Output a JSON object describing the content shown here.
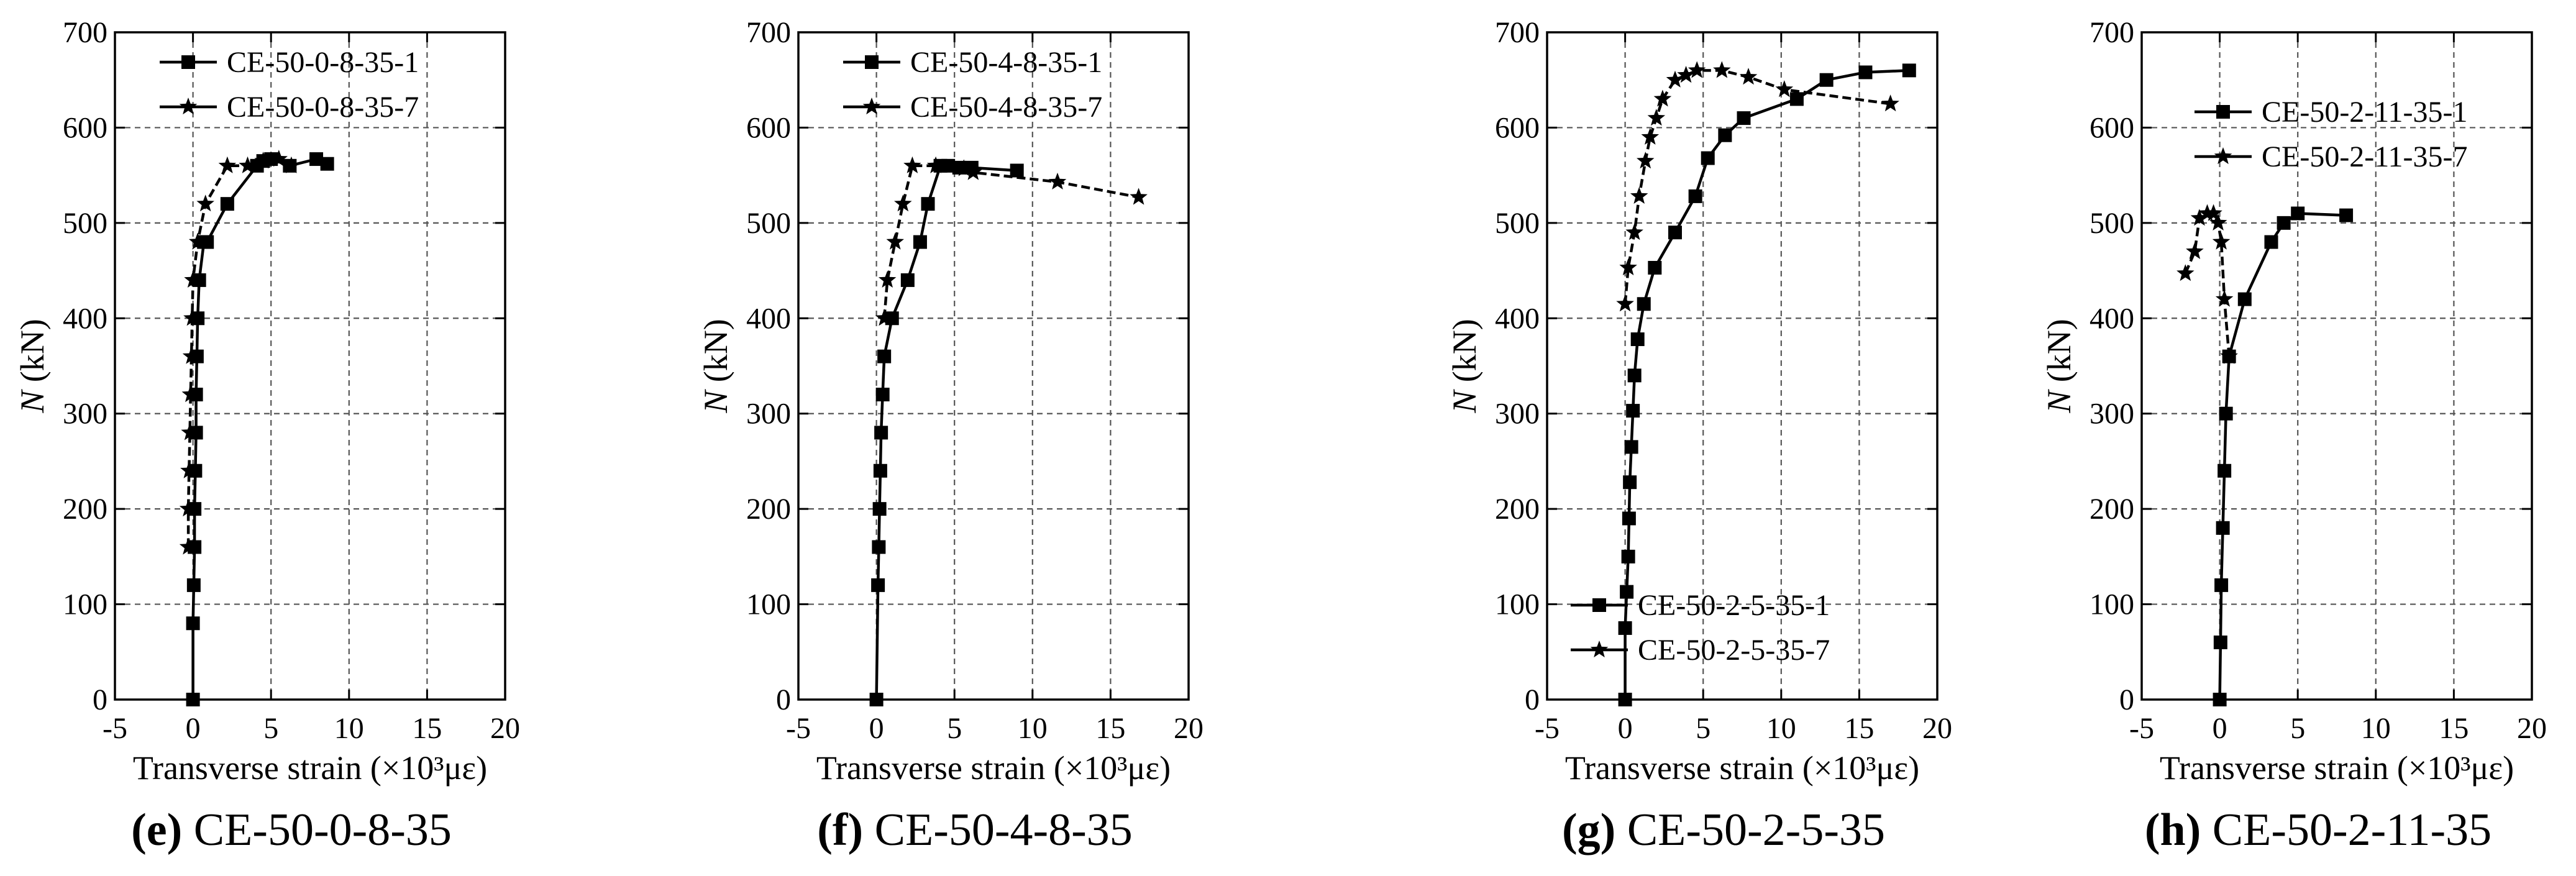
{
  "colors": {
    "line": "#000000",
    "grid": "#555555",
    "background": "#ffffff"
  },
  "chart_data": [
    {
      "type": "line",
      "panel_letter": "(e)",
      "panel_title": "CE-50-0-8-35",
      "xlabel": "Transverse strain (×10³με)",
      "ylabel_symbol": "N",
      "ylabel_unit": "(kN)",
      "xlim": [
        -5,
        20
      ],
      "ylim": [
        0,
        700
      ],
      "xticks": [
        -5,
        0,
        5,
        10,
        15,
        20
      ],
      "yticks": [
        0,
        100,
        200,
        300,
        400,
        500,
        600,
        700
      ],
      "grid": true,
      "legend_position": "top-left",
      "series": [
        {
          "name": "CE-50-0-8-35-1",
          "marker": "square",
          "x": [
            0,
            0,
            0.05,
            0.1,
            0.1,
            0.15,
            0.2,
            0.2,
            0.25,
            0.3,
            0.4,
            0.7,
            0.9,
            2.2,
            4.1,
            4.5,
            5.0,
            6.2,
            7.9,
            8.6
          ],
          "y": [
            0,
            80,
            120,
            160,
            200,
            240,
            280,
            320,
            360,
            400,
            440,
            480,
            480,
            520,
            560,
            565,
            567,
            560,
            567,
            562
          ]
        },
        {
          "name": "CE-50-0-8-35-7",
          "marker": "star",
          "x": [
            -0.3,
            -0.3,
            -0.25,
            -0.2,
            -0.15,
            -0.1,
            -0.05,
            0.0,
            0.3,
            0.8,
            2.2,
            3.5,
            4.5,
            5.5,
            6.3
          ],
          "y": [
            160,
            200,
            240,
            280,
            320,
            360,
            400,
            440,
            480,
            520,
            560,
            560,
            565,
            567,
            560
          ]
        }
      ]
    },
    {
      "type": "line",
      "panel_letter": "(f)",
      "panel_title": "CE-50-4-8-35",
      "xlabel": "Transverse strain (×10³με)",
      "ylabel_symbol": "N",
      "ylabel_unit": "(kN)",
      "xlim": [
        -5,
        20
      ],
      "ylim": [
        0,
        700
      ],
      "xticks": [
        -5,
        0,
        5,
        10,
        15,
        20
      ],
      "yticks": [
        0,
        100,
        200,
        300,
        400,
        500,
        600,
        700
      ],
      "grid": true,
      "legend_position": "top-left",
      "series": [
        {
          "name": "CE-50-4-8-35-1",
          "marker": "square",
          "x": [
            0,
            0.1,
            0.15,
            0.2,
            0.25,
            0.3,
            0.4,
            0.5,
            1.0,
            2.0,
            2.8,
            3.3,
            4.1,
            4.6,
            5.3,
            6.1,
            9.0
          ],
          "y": [
            0,
            120,
            160,
            200,
            240,
            280,
            320,
            360,
            400,
            440,
            480,
            520,
            560,
            560,
            558,
            558,
            555
          ]
        },
        {
          "name": "CE-50-4-8-35-7",
          "marker": "star",
          "x": [
            0.5,
            0.7,
            1.2,
            1.7,
            2.3,
            3.8,
            5.6,
            6.2,
            11.6,
            16.8
          ],
          "y": [
            400,
            440,
            480,
            520,
            560,
            560,
            557,
            553,
            543,
            527
          ]
        }
      ]
    },
    {
      "type": "line",
      "panel_letter": "(g)",
      "panel_title": "CE-50-2-5-35",
      "xlabel": "Transverse strain (×10³με)",
      "ylabel_symbol": "N",
      "ylabel_unit": "(kN)",
      "xlim": [
        -5,
        20
      ],
      "ylim": [
        0,
        700
      ],
      "xticks": [
        -5,
        0,
        5,
        10,
        15,
        20
      ],
      "yticks": [
        0,
        100,
        200,
        300,
        400,
        500,
        600,
        700
      ],
      "grid": true,
      "legend_position": "bottom-right",
      "series": [
        {
          "name": "CE-50-2-5-35-1",
          "marker": "square",
          "x": [
            0,
            0,
            0.1,
            0.2,
            0.25,
            0.3,
            0.4,
            0.5,
            0.6,
            0.8,
            1.2,
            1.9,
            3.2,
            4.5,
            5.3,
            6.4,
            7.6,
            11.0,
            12.9,
            15.4,
            18.2
          ],
          "y": [
            0,
            75,
            113,
            150,
            190,
            228,
            265,
            303,
            340,
            378,
            415,
            453,
            490,
            528,
            568,
            592,
            610,
            630,
            650,
            658,
            660
          ]
        },
        {
          "name": "CE-50-2-5-35-7",
          "marker": "star",
          "x": [
            0,
            0.2,
            0.6,
            0.9,
            1.3,
            1.6,
            2.0,
            2.4,
            3.2,
            3.9,
            4.6,
            6.2,
            7.9,
            10.2,
            17.0
          ],
          "y": [
            415,
            453,
            490,
            528,
            565,
            590,
            610,
            630,
            650,
            655,
            660,
            660,
            653,
            640,
            625
          ]
        }
      ]
    },
    {
      "type": "line",
      "panel_letter": "(h)",
      "panel_title": "CE-50-2-11-35",
      "xlabel": "Transverse strain (×10³με)",
      "ylabel_symbol": "N",
      "ylabel_unit": "(kN)",
      "xlim": [
        -5,
        20
      ],
      "ylim": [
        0,
        700
      ],
      "xticks": [
        -5,
        0,
        5,
        10,
        15,
        20
      ],
      "yticks": [
        0,
        100,
        200,
        300,
        400,
        500,
        600,
        700
      ],
      "grid": true,
      "legend_position": "top-right",
      "series": [
        {
          "name": "CE-50-2-11-35-1",
          "marker": "square",
          "x": [
            0,
            0.05,
            0.1,
            0.2,
            0.3,
            0.4,
            0.6,
            1.6,
            3.3,
            4.1,
            5.0,
            8.1
          ],
          "y": [
            0,
            60,
            120,
            180,
            240,
            300,
            360,
            420,
            480,
            500,
            510,
            508
          ]
        },
        {
          "name": "CE-50-2-11-35-7",
          "marker": "star",
          "x": [
            0.6,
            0.3,
            0.1,
            -0.1,
            -0.4,
            -0.8,
            -1.3,
            -1.6,
            -2.2
          ],
          "y": [
            360,
            420,
            480,
            500,
            510,
            510,
            505,
            470,
            447
          ]
        }
      ]
    }
  ]
}
